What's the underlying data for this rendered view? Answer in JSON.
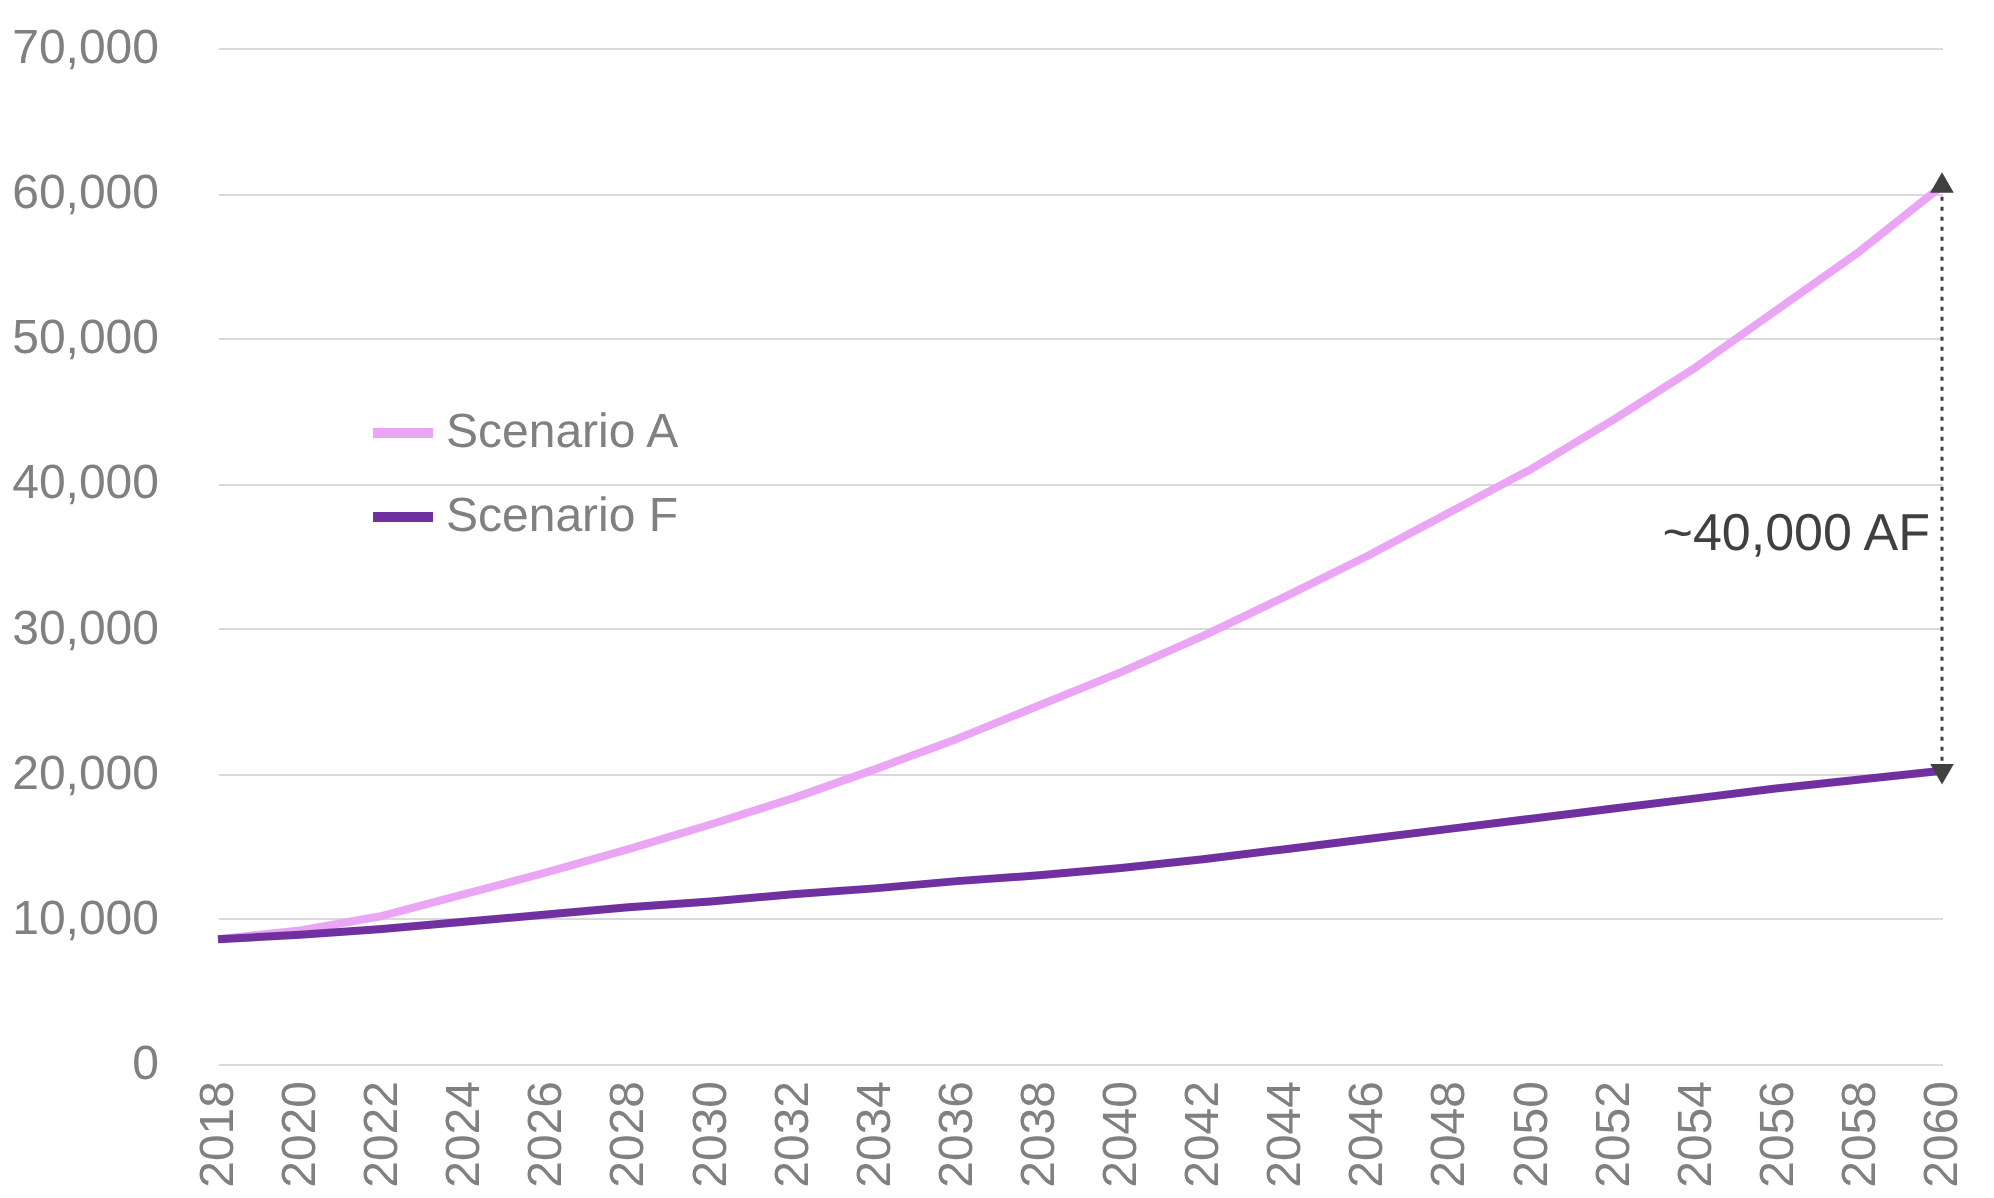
{
  "chart_data": {
    "type": "line",
    "x": [
      2018,
      2020,
      2022,
      2024,
      2026,
      2028,
      2030,
      2032,
      2034,
      2036,
      2038,
      2040,
      2042,
      2044,
      2046,
      2048,
      2050,
      2052,
      2054,
      2056,
      2058,
      2060
    ],
    "series": [
      {
        "name": "Scenario A",
        "color": "#eaa6f4",
        "values": [
          8600,
          9200,
          10200,
          11700,
          13200,
          14800,
          16500,
          18300,
          20300,
          22400,
          24700,
          27000,
          29500,
          32200,
          35000,
          38000,
          41000,
          44400,
          48000,
          52000,
          56000,
          60500
        ]
      },
      {
        "name": "Scenario F",
        "color": "#7030a0",
        "values": [
          8600,
          8900,
          9300,
          9800,
          10300,
          10800,
          11200,
          11700,
          12100,
          12600,
          13000,
          13500,
          14100,
          14800,
          15500,
          16200,
          16900,
          17600,
          18300,
          19000,
          19600,
          20200
        ]
      }
    ],
    "xlim": [
      2018,
      2060
    ],
    "xticks": [
      2018,
      2020,
      2022,
      2024,
      2026,
      2028,
      2030,
      2032,
      2034,
      2036,
      2038,
      2040,
      2042,
      2044,
      2046,
      2048,
      2050,
      2052,
      2054,
      2056,
      2058,
      2060
    ],
    "ylim": [
      0,
      70000
    ],
    "yticks": [
      0,
      {
        "value": 10000,
        "label": "10,000"
      },
      {
        "value": 20000,
        "label": "20,000"
      },
      {
        "value": 30000,
        "label": "30,000"
      },
      {
        "value": 40000,
        "label": "40,000"
      },
      {
        "value": 50000,
        "label": "50,000"
      },
      {
        "value": 60000,
        "label": "60,000"
      },
      {
        "value": 70000,
        "label": "70,000"
      }
    ],
    "grid": "y",
    "legend": "top left",
    "marker": "none",
    "line_style": "solid",
    "annotations": [
      "~40,000 AF"
    ]
  }
}
